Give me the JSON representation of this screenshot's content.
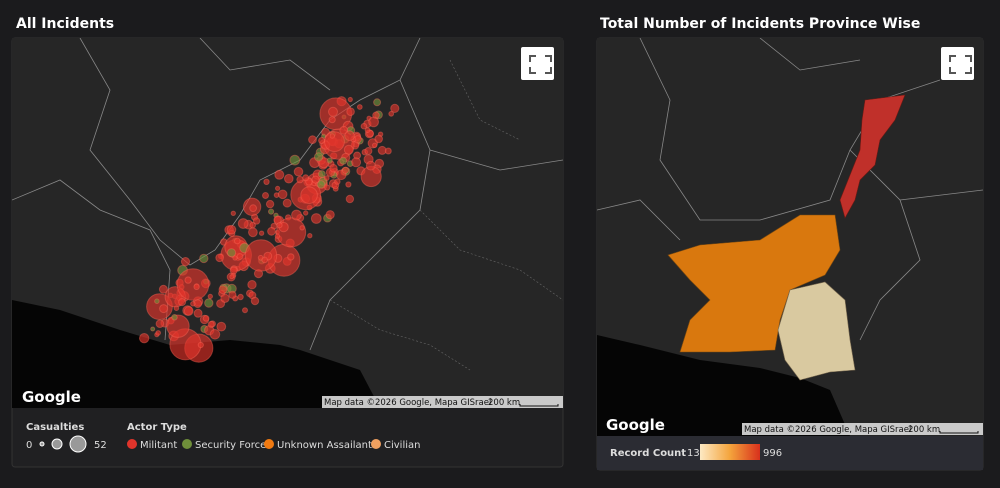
{
  "left_panel": {
    "title": "All Incidents",
    "attribution": "Google",
    "map_data": "Map data ©2026 Google, Mapa GISrael",
    "scale": "200 km",
    "casualties_legend": {
      "title": "Casualties",
      "min": 0,
      "max": 52
    },
    "actor_legend": {
      "title": "Actor Type",
      "items": [
        {
          "name": "Militant",
          "color": "#e0342b"
        },
        {
          "name": "Security Force",
          "color": "#6f8f3a"
        },
        {
          "name": "Unknown Assailants",
          "color": "#f07a12"
        },
        {
          "name": "Civilian",
          "color": "#f0a060"
        }
      ]
    }
  },
  "right_panel": {
    "title": "Total Number of Incidents Province Wise",
    "attribution": "Google",
    "map_data": "Map data ©2026 Google, Mapa GISrael",
    "scale": "200 km",
    "record_count": {
      "label": "Record Count",
      "min": 13,
      "max": 996
    }
  }
}
